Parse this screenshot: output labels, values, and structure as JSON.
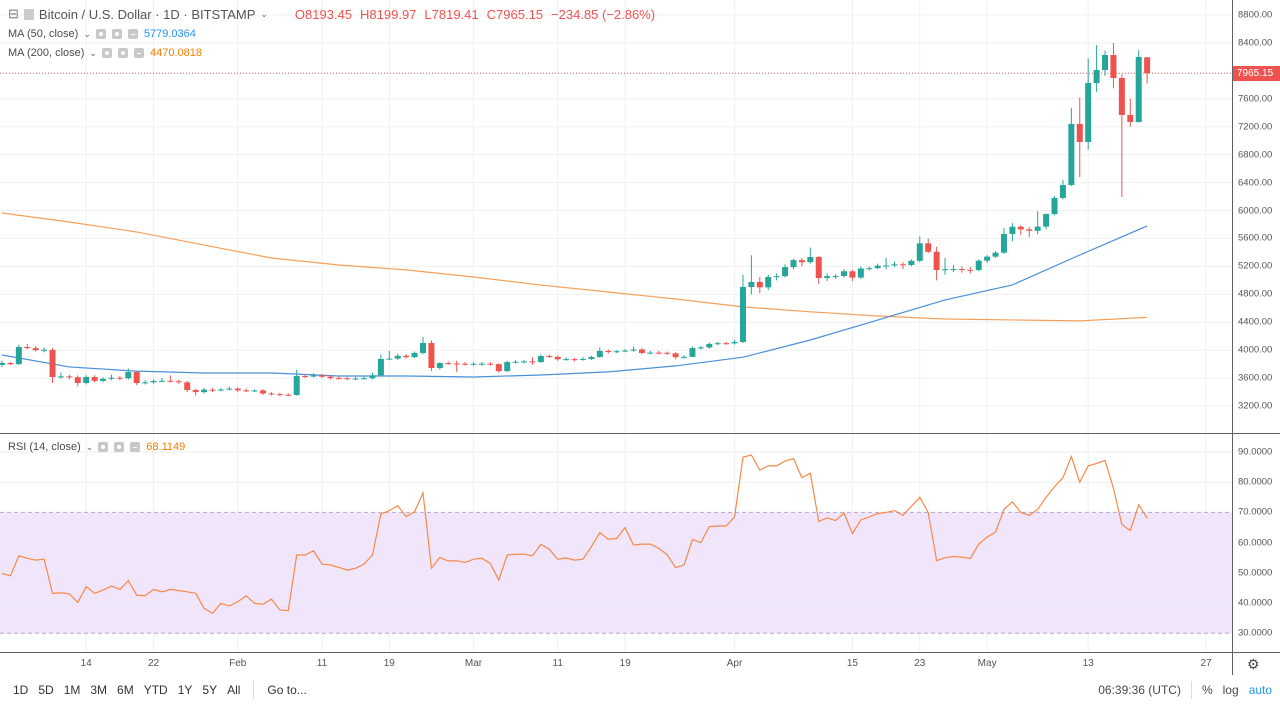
{
  "symbol": {
    "title": "Bitcoin / U.S. Dollar · 1D · BITSTAMP",
    "open": "O8193.45",
    "high": "H8199.97",
    "low": "L7819.41",
    "close": "C7965.15",
    "change": "−234.85 (−2.86%)",
    "last_price": "7965.15"
  },
  "indicators": [
    {
      "label": "MA (50, close)",
      "value": "5779.0364",
      "color": "#2196f3"
    },
    {
      "label": "MA (200, close)",
      "value": "4470.0818",
      "color": "#f57c00"
    }
  ],
  "rsi": {
    "label": "RSI (14, close)",
    "value": "68.1149",
    "color": "#f5894a",
    "band_color": "#f1e5fb"
  },
  "colors": {
    "up": "#26a69a",
    "down": "#ef5350",
    "ma50": "#4a90d9",
    "ma200": "#f5a05a"
  },
  "price_axis": [
    "8800.00",
    "8400.00",
    "7600.00",
    "7200.00",
    "6800.00",
    "6400.00",
    "6000.00",
    "5600.00",
    "5200.00",
    "4800.00",
    "4400.00",
    "4000.00",
    "3600.00",
    "3200.00"
  ],
  "rsi_axis": [
    "90.0000",
    "80.0000",
    "70.0000",
    "60.0000",
    "50.0000",
    "40.0000",
    "30.0000"
  ],
  "time_axis": [
    "14",
    "22",
    "Feb",
    "11",
    "19",
    "Mar",
    "11",
    "19",
    "Apr",
    "15",
    "23",
    "May",
    "13",
    "27"
  ],
  "toolbar": {
    "ranges": [
      "1D",
      "5D",
      "1M",
      "3M",
      "6M",
      "YTD",
      "1Y",
      "5Y",
      "All"
    ],
    "goto": "Go to...",
    "clock": "06:39:36 (UTC)",
    "percent": "%",
    "log": "log",
    "auto": "auto"
  },
  "chart_data": {
    "type": "candlestick",
    "ohlc": [
      [
        3790,
        3850,
        3760,
        3817
      ],
      [
        3817,
        3830,
        3790,
        3800
      ],
      [
        3800,
        4080,
        3790,
        4046
      ],
      [
        4046,
        4090,
        4010,
        4030
      ],
      [
        4030,
        4060,
        3980,
        4000
      ],
      [
        4000,
        4040,
        3970,
        4005
      ],
      [
        4005,
        4030,
        3530,
        3616
      ],
      [
        3616,
        3680,
        3590,
        3625
      ],
      [
        3625,
        3650,
        3580,
        3612
      ],
      [
        3612,
        3640,
        3480,
        3530
      ],
      [
        3530,
        3640,
        3510,
        3616
      ],
      [
        3616,
        3640,
        3540,
        3560
      ],
      [
        3560,
        3610,
        3540,
        3590
      ],
      [
        3590,
        3650,
        3570,
        3605
      ],
      [
        3605,
        3630,
        3570,
        3598
      ],
      [
        3598,
        3740,
        3580,
        3688
      ],
      [
        3688,
        3700,
        3500,
        3530
      ],
      [
        3530,
        3570,
        3510,
        3540
      ],
      [
        3540,
        3580,
        3520,
        3560
      ],
      [
        3560,
        3600,
        3540,
        3562
      ],
      [
        3562,
        3640,
        3540,
        3555
      ],
      [
        3555,
        3580,
        3520,
        3540
      ],
      [
        3540,
        3560,
        3400,
        3430
      ],
      [
        3430,
        3450,
        3350,
        3400
      ],
      [
        3400,
        3460,
        3380,
        3435
      ],
      [
        3435,
        3460,
        3400,
        3428
      ],
      [
        3428,
        3460,
        3410,
        3436
      ],
      [
        3436,
        3480,
        3420,
        3450
      ],
      [
        3450,
        3470,
        3400,
        3425
      ],
      [
        3425,
        3450,
        3400,
        3420
      ],
      [
        3420,
        3440,
        3400,
        3424
      ],
      [
        3424,
        3440,
        3360,
        3380
      ],
      [
        3380,
        3400,
        3350,
        3370
      ],
      [
        3370,
        3390,
        3340,
        3362
      ],
      [
        3362,
        3380,
        3340,
        3358
      ],
      [
        3358,
        3720,
        3350,
        3630
      ],
      [
        3630,
        3660,
        3600,
        3622
      ],
      [
        3622,
        3670,
        3610,
        3640
      ],
      [
        3640,
        3660,
        3600,
        3620
      ],
      [
        3620,
        3640,
        3580,
        3600
      ],
      [
        3600,
        3630,
        3580,
        3598
      ],
      [
        3598,
        3620,
        3570,
        3590
      ],
      [
        3590,
        3620,
        3570,
        3594
      ],
      [
        3594,
        3620,
        3580,
        3598
      ],
      [
        3598,
        3680,
        3580,
        3640
      ],
      [
        3640,
        3940,
        3630,
        3874
      ],
      [
        3874,
        3990,
        3860,
        3880
      ],
      [
        3880,
        3950,
        3860,
        3920
      ],
      [
        3920,
        3940,
        3880,
        3900
      ],
      [
        3900,
        3980,
        3890,
        3960
      ],
      [
        3960,
        4190,
        3940,
        4103
      ],
      [
        4103,
        4140,
        3700,
        3745
      ],
      [
        3745,
        3830,
        3720,
        3815
      ],
      [
        3815,
        3840,
        3790,
        3810
      ],
      [
        3810,
        3850,
        3690,
        3806
      ],
      [
        3806,
        3830,
        3780,
        3800
      ],
      [
        3800,
        3830,
        3780,
        3805
      ],
      [
        3805,
        3830,
        3780,
        3806
      ],
      [
        3806,
        3830,
        3780,
        3800
      ],
      [
        3800,
        3810,
        3680,
        3700
      ],
      [
        3700,
        3850,
        3690,
        3830
      ],
      [
        3830,
        3860,
        3810,
        3835
      ],
      [
        3835,
        3860,
        3810,
        3840
      ],
      [
        3840,
        3900,
        3790,
        3830
      ],
      [
        3830,
        3940,
        3820,
        3917
      ],
      [
        3917,
        3940,
        3890,
        3905
      ],
      [
        3905,
        3920,
        3850,
        3870
      ],
      [
        3870,
        3900,
        3850,
        3872
      ],
      [
        3872,
        3890,
        3840,
        3868
      ],
      [
        3868,
        3900,
        3850,
        3875
      ],
      [
        3875,
        3920,
        3860,
        3903
      ],
      [
        3903,
        4040,
        3890,
        3989
      ],
      [
        3989,
        4010,
        3950,
        3980
      ],
      [
        3980,
        4000,
        3960,
        3985
      ],
      [
        3985,
        4020,
        3970,
        3995
      ],
      [
        3995,
        4050,
        3980,
        4010
      ],
      [
        4010,
        4030,
        3940,
        3960
      ],
      [
        3960,
        3990,
        3940,
        3965
      ],
      [
        3965,
        3990,
        3940,
        3964
      ],
      [
        3964,
        3980,
        3930,
        3955
      ],
      [
        3955,
        3970,
        3870,
        3900
      ],
      [
        3900,
        3930,
        3880,
        3905
      ],
      [
        3905,
        4050,
        3900,
        4030
      ],
      [
        4030,
        4060,
        4010,
        4040
      ],
      [
        4040,
        4110,
        4020,
        4090
      ],
      [
        4090,
        4120,
        4070,
        4100
      ],
      [
        4100,
        4120,
        4080,
        4098
      ],
      [
        4098,
        4150,
        4080,
        4117
      ],
      [
        4117,
        5080,
        4100,
        4905
      ],
      [
        4905,
        5360,
        4800,
        4977
      ],
      [
        4977,
        5050,
        4820,
        4900
      ],
      [
        4900,
        5080,
        4860,
        5048
      ],
      [
        5048,
        5100,
        5000,
        5060
      ],
      [
        5060,
        5230,
        5040,
        5190
      ],
      [
        5190,
        5310,
        5160,
        5290
      ],
      [
        5290,
        5320,
        5200,
        5260
      ],
      [
        5260,
        5470,
        5240,
        5335
      ],
      [
        5335,
        5350,
        4950,
        5034
      ],
      [
        5034,
        5100,
        4990,
        5060
      ],
      [
        5060,
        5090,
        5020,
        5062
      ],
      [
        5062,
        5160,
        5040,
        5130
      ],
      [
        5130,
        5150,
        4990,
        5040
      ],
      [
        5040,
        5200,
        5020,
        5170
      ],
      [
        5170,
        5200,
        5140,
        5175
      ],
      [
        5175,
        5240,
        5160,
        5210
      ],
      [
        5210,
        5320,
        5160,
        5214
      ],
      [
        5214,
        5270,
        5190,
        5230
      ],
      [
        5230,
        5260,
        5160,
        5220
      ],
      [
        5220,
        5300,
        5200,
        5280
      ],
      [
        5280,
        5630,
        5260,
        5530
      ],
      [
        5530,
        5600,
        5390,
        5410
      ],
      [
        5410,
        5480,
        5000,
        5148
      ],
      [
        5148,
        5320,
        5080,
        5160
      ],
      [
        5160,
        5220,
        5120,
        5162
      ],
      [
        5162,
        5200,
        5110,
        5150
      ],
      [
        5150,
        5190,
        5100,
        5148
      ],
      [
        5148,
        5300,
        5130,
        5282
      ],
      [
        5282,
        5360,
        5250,
        5340
      ],
      [
        5340,
        5420,
        5320,
        5396
      ],
      [
        5396,
        5750,
        5380,
        5664
      ],
      [
        5664,
        5820,
        5560,
        5768
      ],
      [
        5768,
        5790,
        5650,
        5730
      ],
      [
        5730,
        5760,
        5620,
        5710
      ],
      [
        5710,
        5990,
        5660,
        5770
      ],
      [
        5770,
        5960,
        5730,
        5950
      ],
      [
        5950,
        6210,
        5930,
        6180
      ],
      [
        6180,
        6440,
        6160,
        6365
      ],
      [
        6365,
        7470,
        6350,
        7240
      ],
      [
        7240,
        7620,
        6480,
        6982
      ],
      [
        6982,
        8180,
        6870,
        7826
      ],
      [
        7826,
        8370,
        7700,
        8012
      ],
      [
        8012,
        8290,
        7930,
        8227
      ],
      [
        8227,
        8400,
        7750,
        7898
      ],
      [
        7898,
        7950,
        6194,
        7368
      ],
      [
        7368,
        7600,
        7200,
        7268
      ],
      [
        7268,
        8300,
        7260,
        8200
      ],
      [
        8193.45,
        8199.97,
        7819.41,
        7965.15
      ]
    ],
    "ma50": [
      3931,
      3760,
      3700,
      3673,
      3673,
      3630,
      3630,
      3616,
      3645,
      3690,
      3775,
      3900,
      4146,
      4432,
      4720,
      4935,
      5363,
      5779
    ],
    "ma200": [
      5965,
      5836,
      5693,
      5506,
      5320,
      5220,
      5150,
      5048,
      4933,
      4833,
      4733,
      4620,
      4550,
      4490,
      4447,
      4433,
      4420,
      4470
    ],
    "rsi": [
      49.8,
      49,
      55.6,
      54.8,
      54.2,
      54.5,
      43.2,
      43.4,
      43,
      40.2,
      45.4,
      43.2,
      44.3,
      45.6,
      44.5,
      47.4,
      42.6,
      42.4,
      44.5,
      43.7,
      44.5,
      44.1,
      43.7,
      43.2,
      38.2,
      36.6,
      39.9,
      39,
      40.4,
      42.4,
      39.9,
      39.6,
      41.3,
      37.7,
      37.5,
      55.9,
      55.9,
      57.3,
      52.9,
      52.6,
      51.8,
      50.9,
      51.5,
      52.9,
      55.9,
      69.5,
      70.6,
      72.2,
      68.6,
      70.2,
      76.5,
      51.5,
      55.1,
      53.9,
      54,
      53.4,
      54.5,
      54.8,
      53.1,
      47.6,
      55.9,
      56.1,
      56.2,
      55.6,
      59.4,
      57.8,
      54.5,
      54.9,
      54.2,
      54.5,
      58.7,
      63.3,
      61.1,
      61.4,
      65,
      59.2,
      59.5,
      59.5,
      58.1,
      56,
      51.7,
      52.6,
      61,
      60,
      65.3,
      65.5,
      65.5,
      68.5,
      88.3,
      89,
      84,
      85.4,
      85.4,
      87,
      87.8,
      81.5,
      83,
      67,
      68.2,
      67.3,
      69.8,
      63,
      67.5,
      68.5,
      69.6,
      70,
      70.6,
      69,
      72,
      75,
      70,
      54,
      55,
      55.4,
      55.2,
      54.7,
      59.5,
      61.8,
      63.5,
      71,
      73.5,
      70,
      69,
      71,
      75,
      78.5,
      81.5,
      88.5,
      80,
      85.4,
      86.2,
      87.2,
      78,
      66,
      64,
      72.5,
      68.1
    ],
    "price_range": [
      3000,
      8900
    ],
    "rsi_range": [
      30,
      90
    ],
    "rsi_bands": [
      30,
      70
    ],
    "grid": true
  }
}
